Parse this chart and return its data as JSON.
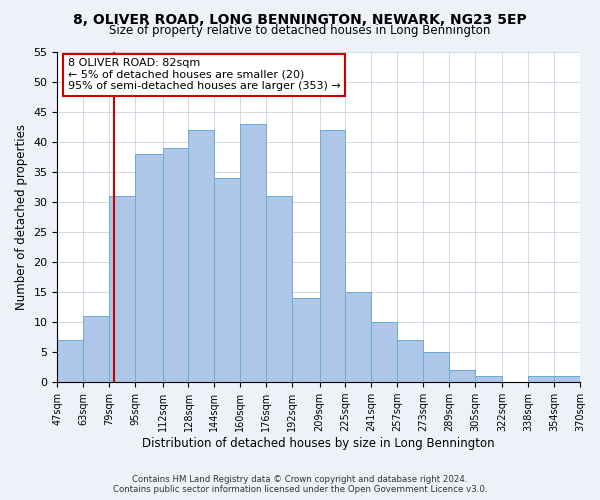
{
  "title": "8, OLIVER ROAD, LONG BENNINGTON, NEWARK, NG23 5EP",
  "subtitle": "Size of property relative to detached houses in Long Bennington",
  "xlabel": "Distribution of detached houses by size in Long Bennington",
  "ylabel": "Number of detached properties",
  "bar_edges": [
    47,
    63,
    79,
    95,
    112,
    128,
    144,
    160,
    176,
    192,
    209,
    225,
    241,
    257,
    273,
    289,
    305,
    322,
    338,
    354,
    370
  ],
  "bar_heights": [
    7,
    11,
    31,
    38,
    39,
    42,
    34,
    43,
    31,
    14,
    42,
    15,
    10,
    7,
    5,
    2,
    1,
    0,
    1,
    1
  ],
  "bar_color": "#aec6e8",
  "bar_edge_color": "#6aaad4",
  "bar_linewidth": 0.7,
  "vline_x": 82,
  "vline_color": "#cc0000",
  "ylim": [
    0,
    55
  ],
  "yticks": [
    0,
    5,
    10,
    15,
    20,
    25,
    30,
    35,
    40,
    45,
    50,
    55
  ],
  "tick_labels": [
    "47sqm",
    "63sqm",
    "79sqm",
    "95sqm",
    "112sqm",
    "128sqm",
    "144sqm",
    "160sqm",
    "176sqm",
    "192sqm",
    "209sqm",
    "225sqm",
    "241sqm",
    "257sqm",
    "273sqm",
    "289sqm",
    "305sqm",
    "322sqm",
    "338sqm",
    "354sqm",
    "370sqm"
  ],
  "annotation_title": "8 OLIVER ROAD: 82sqm",
  "annotation_line1": "← 5% of detached houses are smaller (20)",
  "annotation_line2": "95% of semi-detached houses are larger (353) →",
  "footer1": "Contains HM Land Registry data © Crown copyright and database right 2024.",
  "footer2": "Contains public sector information licensed under the Open Government Licence v3.0.",
  "bg_color": "#eef2f8",
  "plot_bg_color": "#ffffff",
  "grid_color": "#c8d4e0"
}
